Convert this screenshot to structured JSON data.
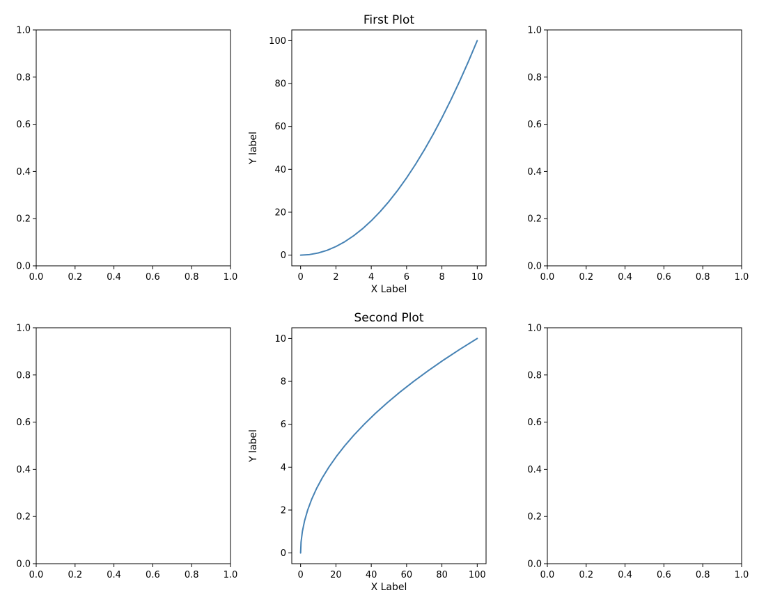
{
  "chart_data": [
    {
      "type": "empty",
      "position": "row 1, column 1",
      "title": "",
      "xlabel": "",
      "ylabel": "",
      "xlim": [
        0,
        1
      ],
      "ylim": [
        0,
        1
      ],
      "xticks": [
        "0.0",
        "0.2",
        "0.4",
        "0.6",
        "0.8",
        "1.0"
      ],
      "yticks": [
        "0.0",
        "0.2",
        "0.4",
        "0.6",
        "0.8",
        "1.0"
      ],
      "series": []
    },
    {
      "type": "line",
      "position": "row 1, column 2",
      "title": "First Plot",
      "xlabel": "X Label",
      "ylabel": "Y label",
      "xlim": [
        -0.5,
        10.5
      ],
      "ylim": [
        -5,
        105
      ],
      "xticks": [
        "0",
        "2",
        "4",
        "6",
        "8",
        "10"
      ],
      "yticks": [
        "0",
        "20",
        "40",
        "60",
        "80",
        "100"
      ],
      "series": [
        {
          "color": "#4682b4",
          "x": [
            0,
            0.5,
            1,
            1.5,
            2,
            2.5,
            3,
            3.5,
            4,
            4.5,
            5,
            5.5,
            6,
            6.5,
            7,
            7.5,
            8,
            8.5,
            9,
            9.5,
            10
          ],
          "y": [
            0,
            0.25,
            1,
            2.25,
            4,
            6.25,
            9,
            12.25,
            16,
            20.25,
            25,
            30.25,
            36,
            42.25,
            49,
            56.25,
            64,
            72.25,
            81,
            90.25,
            100
          ]
        }
      ]
    },
    {
      "type": "empty",
      "position": "row 1, column 3",
      "title": "",
      "xlabel": "",
      "ylabel": "",
      "xlim": [
        0,
        1
      ],
      "ylim": [
        0,
        1
      ],
      "xticks": [
        "0.0",
        "0.2",
        "0.4",
        "0.6",
        "0.8",
        "1.0"
      ],
      "yticks": [
        "0.0",
        "0.2",
        "0.4",
        "0.6",
        "0.8",
        "1.0"
      ],
      "series": []
    },
    {
      "type": "empty",
      "position": "row 2, column 1",
      "title": "",
      "xlabel": "",
      "ylabel": "",
      "xlim": [
        0,
        1
      ],
      "ylim": [
        0,
        1
      ],
      "xticks": [
        "0.0",
        "0.2",
        "0.4",
        "0.6",
        "0.8",
        "1.0"
      ],
      "yticks": [
        "0.0",
        "0.2",
        "0.4",
        "0.6",
        "0.8",
        "1.0"
      ],
      "series": []
    },
    {
      "type": "line",
      "position": "row 2, column 2",
      "title": "Second Plot",
      "xlabel": "X Label",
      "ylabel": "Y label",
      "xlim": [
        -5,
        105
      ],
      "ylim": [
        -0.5,
        10.5
      ],
      "xticks": [
        "0",
        "20",
        "40",
        "60",
        "80",
        "100"
      ],
      "yticks": [
        "0",
        "2",
        "4",
        "6",
        "8",
        "10"
      ],
      "series": [
        {
          "color": "#4682b4",
          "x": [
            0,
            0.25,
            1,
            2.25,
            4,
            6.25,
            9,
            12.25,
            16,
            20.25,
            25,
            30.25,
            36,
            42.25,
            49,
            56.25,
            64,
            72.25,
            81,
            90.25,
            100
          ],
          "y": [
            0,
            0.5,
            1,
            1.5,
            2,
            2.5,
            3,
            3.5,
            4,
            4.5,
            5,
            5.5,
            6,
            6.5,
            7,
            7.5,
            8,
            8.5,
            9,
            9.5,
            10
          ]
        }
      ]
    },
    {
      "type": "empty",
      "position": "row 2, column 3",
      "title": "",
      "xlabel": "",
      "ylabel": "",
      "xlim": [
        0,
        1
      ],
      "ylim": [
        0,
        1
      ],
      "xticks": [
        "0.0",
        "0.2",
        "0.4",
        "0.6",
        "0.8",
        "1.0"
      ],
      "yticks": [
        "0.0",
        "0.2",
        "0.4",
        "0.6",
        "0.8",
        "1.0"
      ],
      "series": []
    }
  ]
}
